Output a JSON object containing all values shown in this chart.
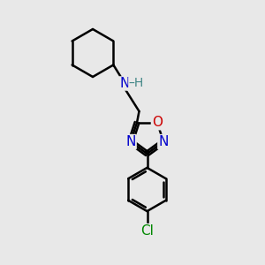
{
  "background_color": "#e8e8e8",
  "bond_color": "#000000",
  "bond_width": 1.8,
  "atom_colors": {
    "N": "#0000cc",
    "O": "#cc0000",
    "Cl": "#008800",
    "H": "#448888"
  },
  "font_size": 10,
  "fig_size": [
    3.0,
    3.0
  ],
  "dpi": 100
}
